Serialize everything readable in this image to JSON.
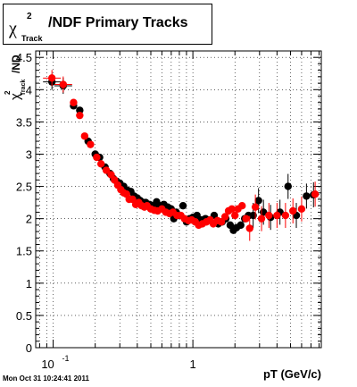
{
  "title": {
    "symbol": "χ",
    "superscript": "2",
    "subscript": "Track",
    "text": "/NDF  Primary Tracks"
  },
  "footer": "Mon Oct 31 10:24:41 2011",
  "chart_data": {
    "type": "scatter",
    "xscale": "log",
    "xlim": [
      0.075,
      8.3
    ],
    "ylim": [
      0,
      4.6
    ],
    "xlabel": "pT (GeV/c)",
    "ylabel_symbol": "χ",
    "ylabel_sup": "2",
    "ylabel_sub": "Track",
    "ylabel_tail": "/ND",
    "grid": true,
    "xtick_labels": [
      {
        "x": 0.1,
        "base": "10",
        "exp": "-1"
      },
      {
        "x": 1,
        "base": "1",
        "exp": ""
      }
    ],
    "yticks": [
      0,
      0.5,
      1,
      1.5,
      2,
      2.5,
      3,
      3.5,
      4,
      4.5
    ],
    "ytick_labels": [
      "0",
      "0.5",
      "1",
      "1.5",
      "2",
      "2.5",
      "3",
      "3.5",
      "4",
      "4.5"
    ],
    "series": [
      {
        "color": "#000000",
        "points": [
          [
            0.098,
            4.12
          ],
          [
            0.118,
            4.06
          ],
          [
            0.14,
            3.75
          ],
          [
            0.155,
            3.68
          ],
          [
            0.178,
            3.2
          ],
          [
            0.2,
            3.0
          ],
          [
            0.215,
            2.95
          ],
          [
            0.235,
            2.8
          ],
          [
            0.255,
            2.7
          ],
          [
            0.27,
            2.62
          ],
          [
            0.285,
            2.58
          ],
          [
            0.3,
            2.55
          ],
          [
            0.32,
            2.5
          ],
          [
            0.34,
            2.44
          ],
          [
            0.36,
            2.42
          ],
          [
            0.38,
            2.35
          ],
          [
            0.4,
            2.32
          ],
          [
            0.42,
            2.28
          ],
          [
            0.44,
            2.25
          ],
          [
            0.46,
            2.25
          ],
          [
            0.49,
            2.22
          ],
          [
            0.52,
            2.2
          ],
          [
            0.55,
            2.26
          ],
          [
            0.58,
            2.2
          ],
          [
            0.62,
            2.22
          ],
          [
            0.66,
            2.18
          ],
          [
            0.7,
            2.15
          ],
          [
            0.73,
            2.0
          ],
          [
            0.76,
            2.1
          ],
          [
            0.8,
            2.05
          ],
          [
            0.85,
            2.2
          ],
          [
            0.9,
            1.95
          ],
          [
            0.95,
            2.0
          ],
          [
            1.0,
            2.02
          ],
          [
            1.07,
            2.05
          ],
          [
            1.15,
            1.98
          ],
          [
            1.23,
            2.0
          ],
          [
            1.32,
            1.98
          ],
          [
            1.42,
            2.05
          ],
          [
            1.52,
            1.92
          ],
          [
            1.62,
            1.95
          ],
          [
            1.72,
            2.0
          ],
          [
            1.85,
            1.9
          ],
          [
            1.95,
            1.82
          ],
          [
            2.05,
            1.86
          ],
          [
            2.2,
            1.9
          ],
          [
            2.35,
            2.0
          ],
          [
            2.5,
            2.05
          ],
          [
            2.7,
            2.05
          ],
          [
            2.95,
            2.28
          ],
          [
            3.2,
            2.1
          ],
          [
            3.6,
            2.02
          ],
          [
            4.2,
            2.1
          ],
          [
            4.8,
            2.5
          ],
          [
            5.5,
            2.05
          ],
          [
            6.5,
            2.35
          ],
          [
            7.3,
            2.37
          ]
        ]
      },
      {
        "color": "#ff0000",
        "points": [
          [
            0.098,
            4.18
          ],
          [
            0.118,
            4.08
          ],
          [
            0.14,
            3.8
          ],
          [
            0.155,
            3.6
          ],
          [
            0.168,
            3.28
          ],
          [
            0.185,
            3.15
          ],
          [
            0.205,
            2.95
          ],
          [
            0.22,
            2.85
          ],
          [
            0.24,
            2.75
          ],
          [
            0.26,
            2.68
          ],
          [
            0.275,
            2.6
          ],
          [
            0.29,
            2.52
          ],
          [
            0.305,
            2.45
          ],
          [
            0.32,
            2.4
          ],
          [
            0.335,
            2.38
          ],
          [
            0.35,
            2.3
          ],
          [
            0.37,
            2.3
          ],
          [
            0.39,
            2.22
          ],
          [
            0.41,
            2.25
          ],
          [
            0.43,
            2.2
          ],
          [
            0.45,
            2.18
          ],
          [
            0.47,
            2.2
          ],
          [
            0.5,
            2.15
          ],
          [
            0.53,
            2.13
          ],
          [
            0.56,
            2.12
          ],
          [
            0.6,
            2.15
          ],
          [
            0.64,
            2.1
          ],
          [
            0.68,
            2.08
          ],
          [
            0.72,
            2.1
          ],
          [
            0.77,
            2.05
          ],
          [
            0.82,
            2.05
          ],
          [
            0.87,
            2.0
          ],
          [
            0.93,
            1.97
          ],
          [
            0.98,
            1.98
          ],
          [
            1.04,
            1.95
          ],
          [
            1.1,
            1.9
          ],
          [
            1.17,
            1.92
          ],
          [
            1.25,
            1.95
          ],
          [
            1.33,
            1.98
          ],
          [
            1.4,
            1.92
          ],
          [
            1.5,
            1.97
          ],
          [
            1.6,
            1.95
          ],
          [
            1.7,
            2.03
          ],
          [
            1.8,
            2.12
          ],
          [
            1.9,
            2.15
          ],
          [
            2.0,
            2.05
          ],
          [
            2.1,
            2.15
          ],
          [
            2.25,
            2.2
          ],
          [
            2.4,
            2.0
          ],
          [
            2.55,
            1.85
          ],
          [
            2.8,
            2.18
          ],
          [
            3.1,
            2.0
          ],
          [
            3.5,
            2.05
          ],
          [
            4.0,
            2.05
          ],
          [
            4.6,
            2.05
          ],
          [
            5.2,
            2.12
          ],
          [
            6.0,
            2.15
          ],
          [
            7.5,
            2.38
          ]
        ]
      }
    ]
  }
}
